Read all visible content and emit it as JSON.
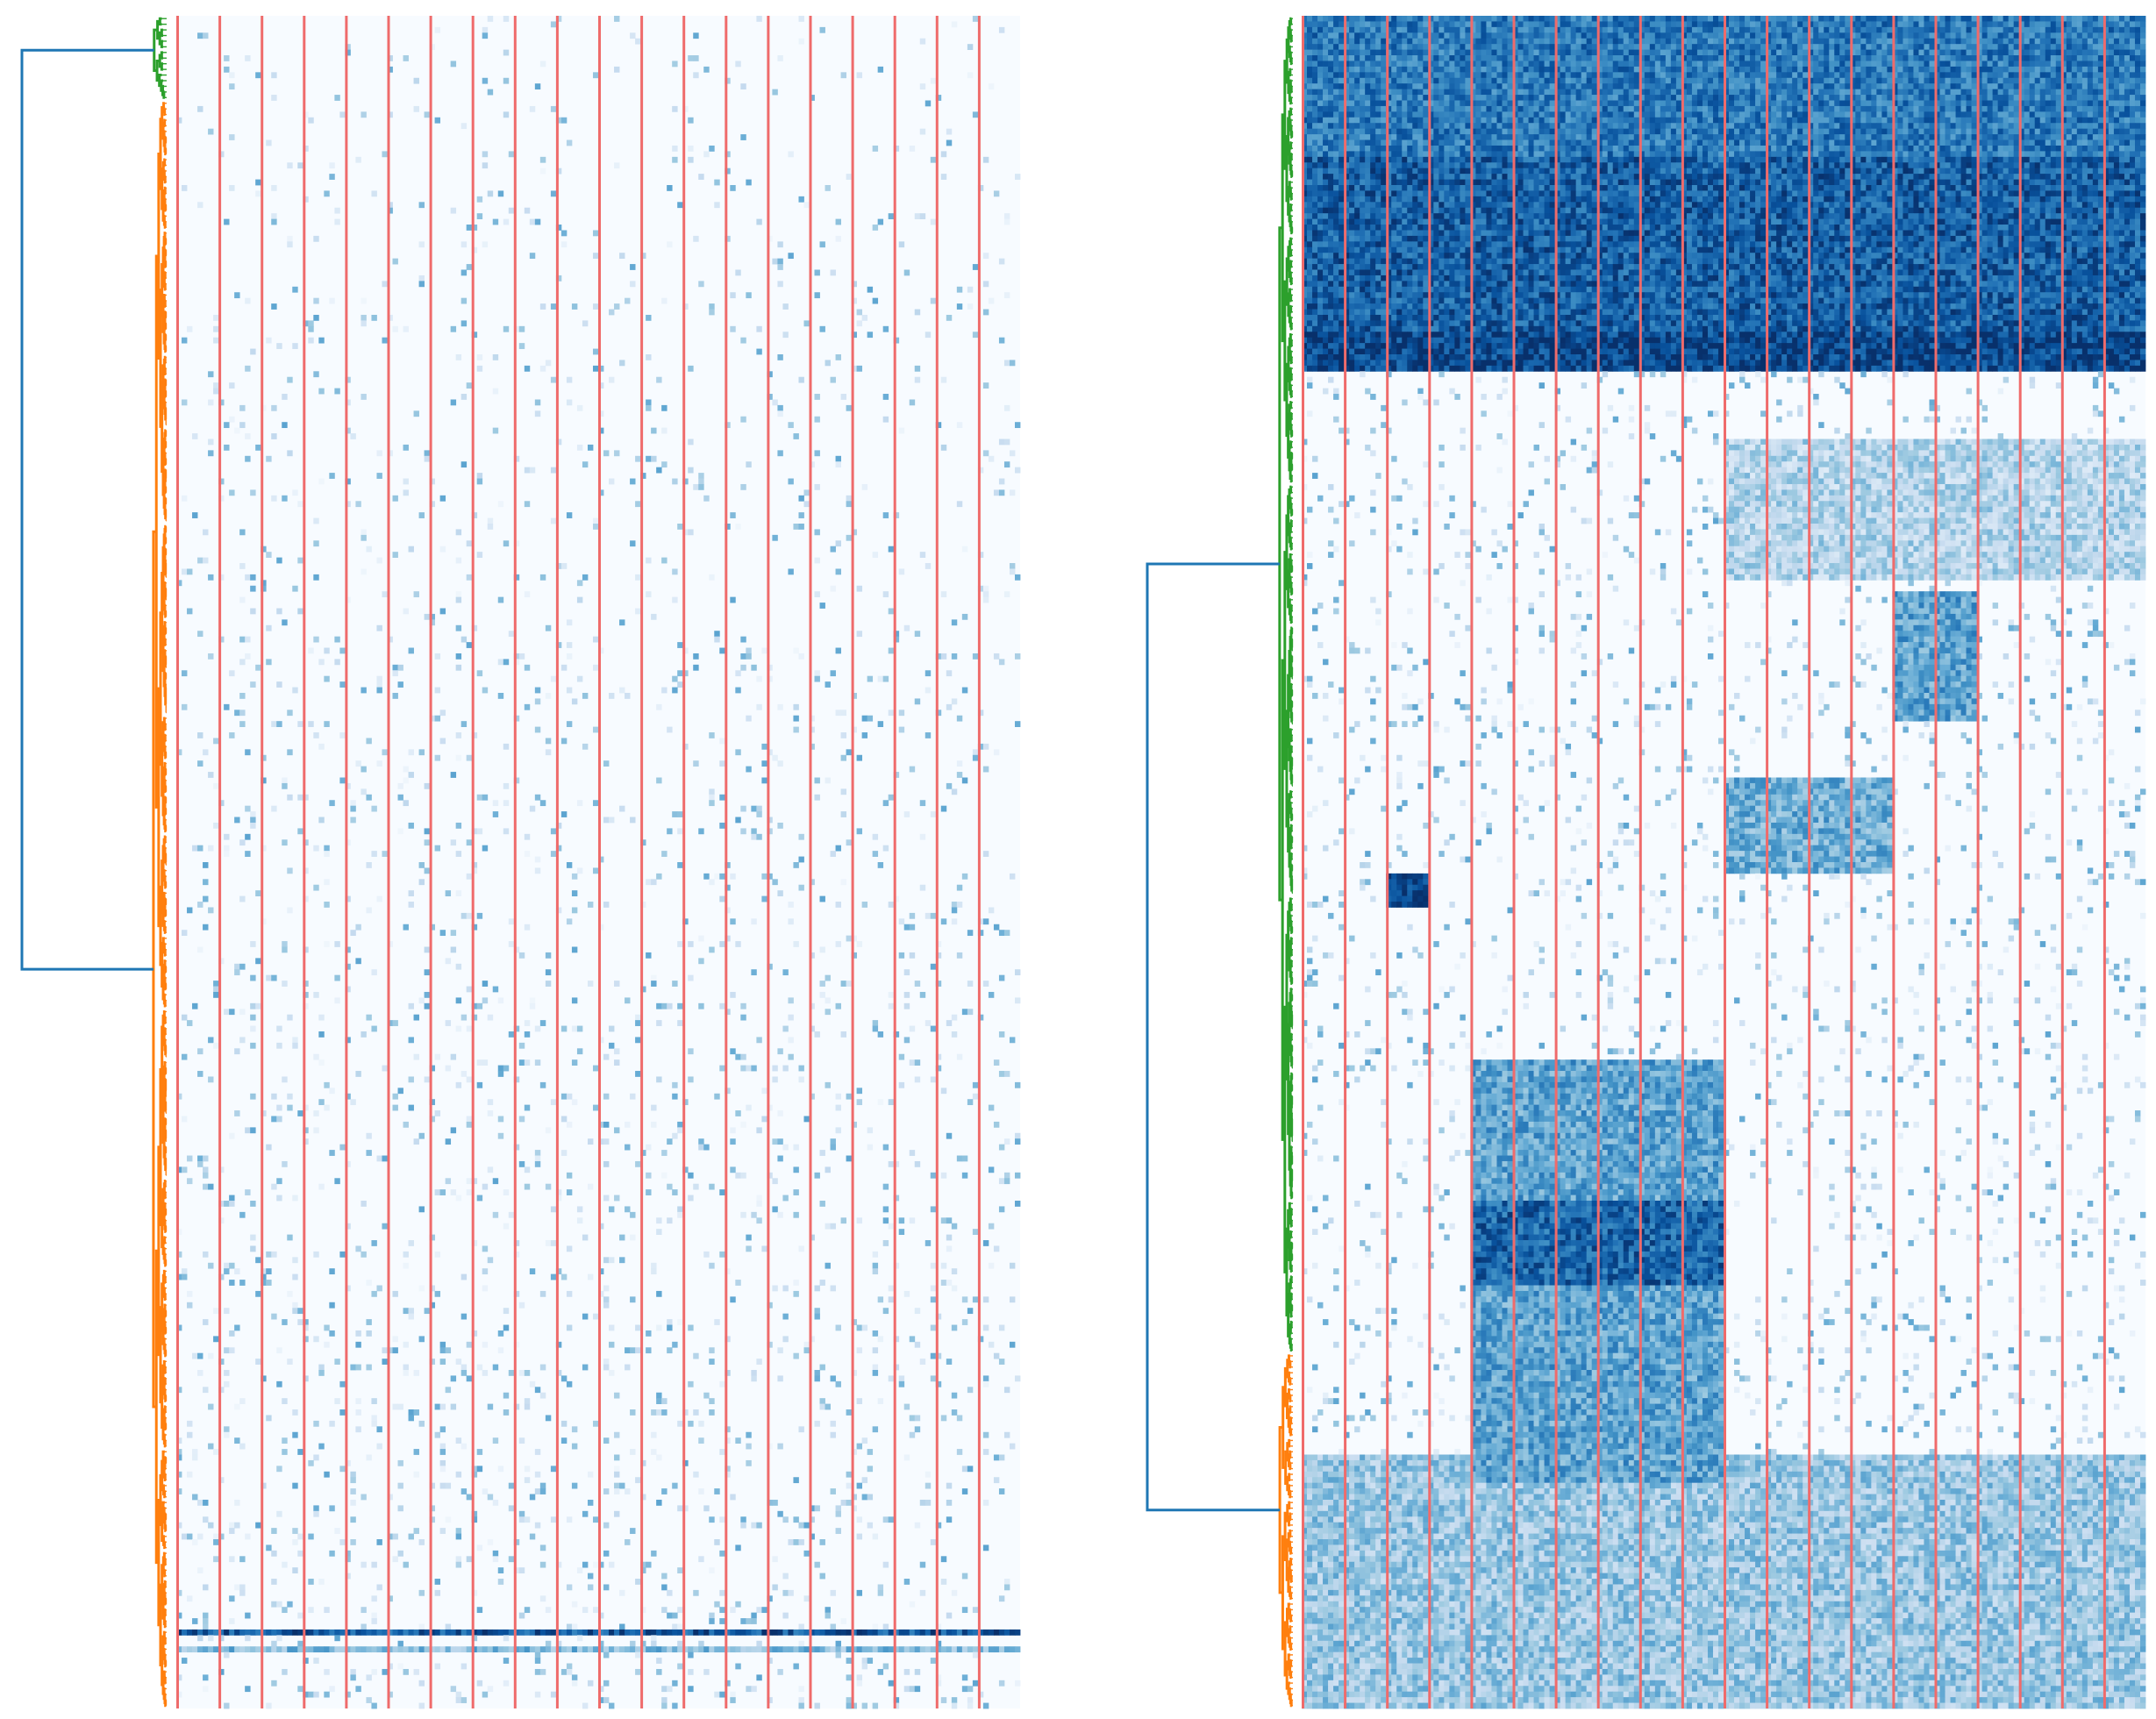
{
  "chart_data": [
    {
      "type": "heatmap",
      "title": "",
      "xlabel": "",
      "ylabel": "",
      "colormap": "Blues",
      "value_range": [
        0,
        1
      ],
      "n_rows": 300,
      "n_column_blocks": 20,
      "separator_color": "#ef6b6b",
      "tick_labels": [],
      "row_dendrogram": {
        "side": "left",
        "clusters": [
          {
            "name": "cluster-1",
            "color": "#2ca02c",
            "rows": [
              0,
              15
            ]
          },
          {
            "name": "cluster-2",
            "color": "#ff7f0e",
            "rows": [
              15,
              300
            ]
          }
        ],
        "root_link_color": "#1f77b4"
      },
      "dense_bands": [
        {
          "row": 286,
          "intensity": 0.85
        },
        {
          "row": 289,
          "intensity": 0.45
        }
      ]
    },
    {
      "type": "heatmap",
      "title": "",
      "xlabel": "",
      "ylabel": "",
      "colormap": "Blues",
      "value_range": [
        0,
        1
      ],
      "n_rows": 300,
      "n_column_blocks": 20,
      "separator_color": "#ef6b6b",
      "tick_labels": [],
      "row_dendrogram": {
        "side": "left",
        "clusters": [
          {
            "name": "cluster-1",
            "color": "#2ca02c",
            "rows": [
              0,
              237
            ]
          },
          {
            "name": "cluster-2",
            "color": "#ff7f0e",
            "rows": [
              237,
              300
            ]
          }
        ],
        "root_link_color": "#1f77b4"
      },
      "blocks": [
        {
          "rows": [
            0,
            63
          ],
          "cols": [
            0,
            20
          ],
          "intensity": 0.72
        },
        {
          "rows": [
            25,
            57
          ],
          "cols": [
            0,
            20
          ],
          "intensity": 0.82
        },
        {
          "rows": [
            56,
            63
          ],
          "cols": [
            0,
            20
          ],
          "intensity": 0.92
        },
        {
          "rows": [
            185,
            260
          ],
          "cols": [
            4,
            10
          ],
          "intensity": 0.55
        },
        {
          "rows": [
            210,
            225
          ],
          "cols": [
            4,
            10
          ],
          "intensity": 0.8
        },
        {
          "rows": [
            255,
            300
          ],
          "cols": [
            0,
            20
          ],
          "intensity": 0.38
        },
        {
          "rows": [
            102,
            125
          ],
          "cols": [
            14,
            16
          ],
          "intensity": 0.55
        },
        {
          "rows": [
            75,
            100
          ],
          "cols": [
            10,
            20
          ],
          "intensity": 0.3
        },
        {
          "rows": [
            135,
            152
          ],
          "cols": [
            10,
            14
          ],
          "intensity": 0.5
        },
        {
          "rows": [
            152,
            158
          ],
          "cols": [
            2,
            3
          ],
          "intensity": 0.95
        }
      ]
    }
  ]
}
